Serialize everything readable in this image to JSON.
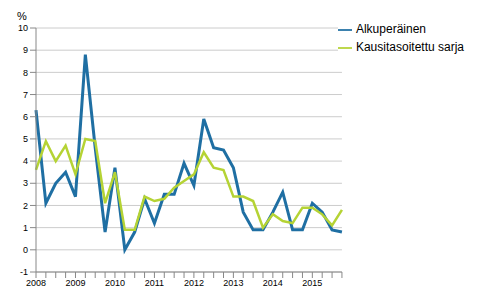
{
  "chart_data": {
    "type": "line",
    "ylabel": "%",
    "categories": [
      "2008",
      null,
      null,
      null,
      "2009",
      null,
      null,
      null,
      "2010",
      null,
      null,
      null,
      "2011",
      null,
      null,
      null,
      "2012",
      null,
      null,
      null,
      "2013",
      null,
      null,
      null,
      "2014",
      null,
      null,
      null,
      "2015",
      null,
      null,
      null
    ],
    "series": [
      {
        "name": "Alkuperäinen",
        "color": "#1f6fa3",
        "values": [
          6.3,
          2.1,
          3.0,
          3.5,
          2.4,
          8.8,
          4.6,
          0.8,
          3.7,
          0.0,
          0.8,
          2.3,
          1.2,
          2.5,
          2.5,
          3.9,
          2.9,
          5.9,
          4.6,
          4.5,
          3.7,
          1.7,
          0.9,
          0.9,
          1.7,
          2.6,
          0.9,
          0.9,
          2.1,
          1.7,
          0.9,
          0.8
        ]
      },
      {
        "name": "Kausitasoitettu sarja",
        "color": "#b5d334",
        "values": [
          3.6,
          4.9,
          4.0,
          4.7,
          3.4,
          5.0,
          4.9,
          2.1,
          3.5,
          0.9,
          0.9,
          2.4,
          2.2,
          2.3,
          2.8,
          3.1,
          3.4,
          4.4,
          3.7,
          3.6,
          2.4,
          2.4,
          2.2,
          1.0,
          1.6,
          1.3,
          1.2,
          1.9,
          1.9,
          1.6,
          1.1,
          1.8
        ]
      }
    ],
    "ylim": [
      -1,
      10
    ],
    "yticks": [
      -1,
      0,
      1,
      2,
      3,
      4,
      5,
      6,
      7,
      8,
      9,
      10
    ],
    "grid": true,
    "legend": "upper right"
  }
}
